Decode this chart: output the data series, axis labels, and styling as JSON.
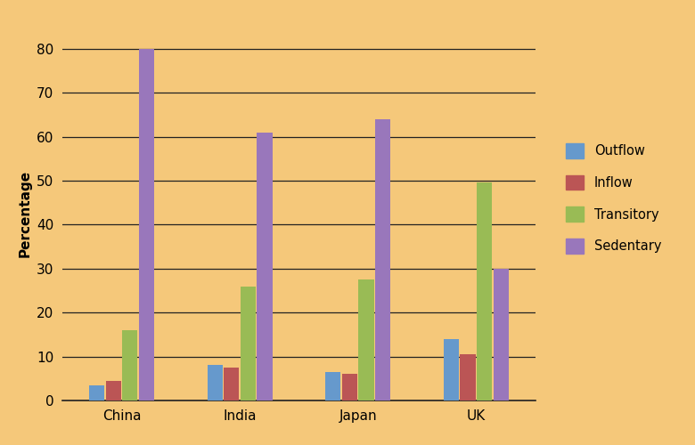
{
  "categories": [
    "China",
    "India",
    "Japan",
    "UK"
  ],
  "series": {
    "Outflow": [
      3.5,
      8,
      6.5,
      14
    ],
    "Inflow": [
      4.5,
      7.5,
      6,
      10.5
    ],
    "Transitory": [
      16,
      26,
      27.5,
      49.5
    ],
    "Sedentary": [
      80,
      61,
      64,
      30
    ]
  },
  "colors": {
    "Outflow": "#6699CC",
    "Inflow": "#BB5555",
    "Transitory": "#99BB55",
    "Sedentary": "#9977BB"
  },
  "ylabel": "Percentage",
  "ylim": [
    0,
    85
  ],
  "yticks": [
    0,
    10,
    20,
    30,
    40,
    50,
    60,
    70,
    80
  ],
  "background_color": "#F5C87A",
  "bar_width": 0.13,
  "grid_color": "#222222",
  "legend_fontsize": 10.5,
  "ylabel_fontsize": 11,
  "tick_fontsize": 11
}
